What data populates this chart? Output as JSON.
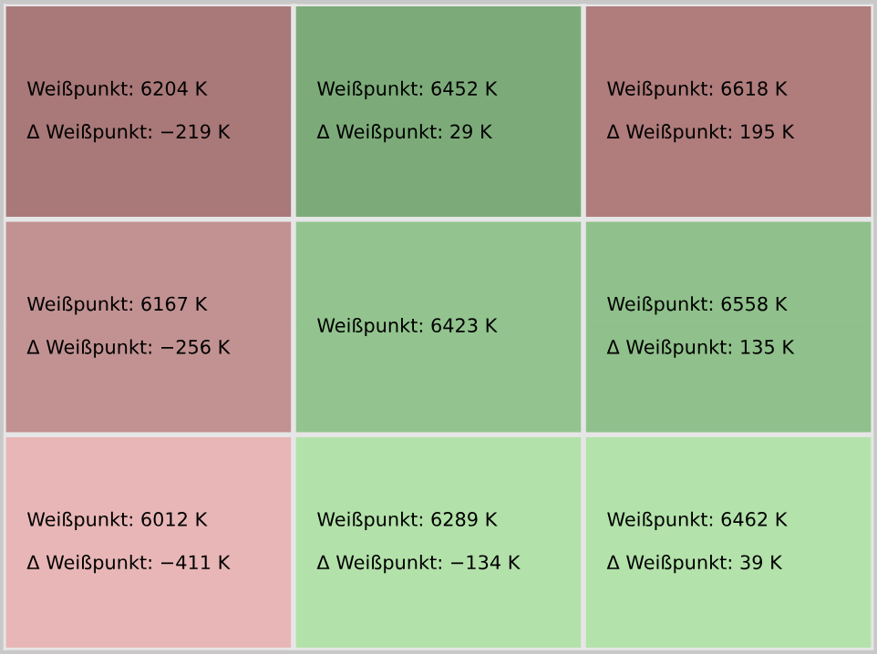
{
  "chart_data": {
    "type": "heatmap",
    "categories": [
      null,
      null,
      null
    ],
    "y_categories": [
      null,
      null,
      null,
      null,
      null,
      null
    ],
    "cells": [
      [
        6204,
        6452,
        6618
      ],
      [
        -219,
        29,
        195
      ],
      [
        6167,
        6423,
        6558
      ],
      [
        -256,
        null,
        135
      ],
      [
        6012,
        6289,
        6462
      ],
      [
        -411,
        -134,
        39
      ]
    ],
    "cell_labels": [
      [
        "Weißpunkt: 6204 K",
        "Weißpunkt: 6452 K",
        "Weißpunkt: 6618 K"
      ],
      [
        "Δ Weißpunkt: −219 K",
        "Δ Weißpunkt: 29 K",
        "Δ Weißpunkt: 195 K"
      ],
      [
        "Weißpunkt: 6167 K",
        "Weißpunkt: 6423 K",
        "Weißpunkt: 6558 K"
      ],
      [
        "Δ Weißpunkt: −256 K",
        null,
        "Δ Weißpunkt: 135 K"
      ],
      [
        "Weißpunkt: 6012 K",
        "Weißpunkt: 6289 K",
        "Weißpunkt: 6462 K"
      ],
      [
        "Δ Weißpunkt: −411 K",
        "Δ Weißpunkt: −134 K",
        "Δ Weißpunkt: 39 K"
      ]
    ],
    "colors": [
      [
        "#a97878",
        "#7cab79",
        "#b07c7c"
      ],
      [
        "#a97878",
        "#7cab79",
        "#b07c7c"
      ],
      [
        "#c29292",
        "#93c48f",
        "#90c08b"
      ],
      [
        "#c29292",
        "#93c48f",
        "#90c08b"
      ],
      [
        "#e8b6b6",
        "#b3e1aa",
        "#b3e2ab"
      ],
      [
        "#e8b6b6",
        "#b3e1aa",
        "#b3e2ab"
      ]
    ]
  }
}
